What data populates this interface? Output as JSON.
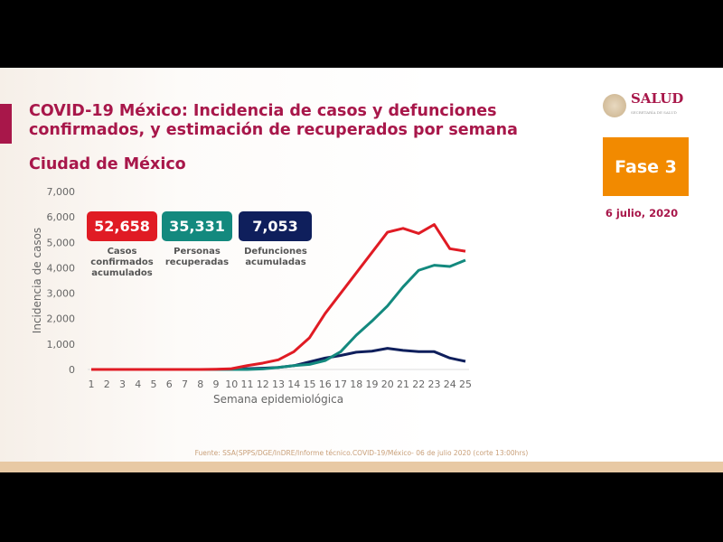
{
  "header": {
    "title_line1": "COVID-19 México: Incidencia de casos y defunciones",
    "title_line2": "confirmados, y estimación de recuperados por semana",
    "subtitle": "Ciudad de México",
    "logo_text": "SALUD",
    "logo_sub": "SECRETARÍA DE SALUD",
    "phase": "Fase 3",
    "date": "6 julio, 2020"
  },
  "kpis": [
    {
      "value": "52,658",
      "label": "Casos confirmados acumulados",
      "color": "#e01b24"
    },
    {
      "value": "35,331",
      "label": "Personas recuperadas",
      "color": "#13897e"
    },
    {
      "value": "7,053",
      "label": "Defunciones acumuladas",
      "color": "#0f1f5c"
    }
  ],
  "footer": {
    "source": "Fuente: SSA(SPPS/DGE/InDRE/Informe técnico.COVID-19/México- 06 de julio 2020 (corte 13:00hrs)"
  },
  "chart_data": {
    "type": "line",
    "xlabel": "Semana epidemiológica",
    "ylabel": "Incidencia de casos",
    "ylim": [
      0,
      7000
    ],
    "yticks": [
      "0",
      "1,000",
      "2,000",
      "3,000",
      "4,000",
      "5,000",
      "6,000",
      "7,000"
    ],
    "x": [
      1,
      2,
      3,
      4,
      5,
      6,
      7,
      8,
      9,
      10,
      11,
      12,
      13,
      14,
      15,
      16,
      17,
      18,
      19,
      20,
      21,
      22,
      23,
      24,
      25
    ],
    "series": [
      {
        "name": "Casos confirmados",
        "color": "#e01b24",
        "values": [
          0,
          0,
          0,
          0,
          0,
          0,
          0,
          0,
          10,
          30,
          150,
          250,
          380,
          700,
          1250,
          2200,
          3000,
          3800,
          4600,
          5400,
          5550,
          5350,
          5700,
          4750,
          4650
        ]
      },
      {
        "name": "Personas recuperadas",
        "color": "#13897e",
        "values": [
          0,
          0,
          0,
          0,
          0,
          0,
          0,
          0,
          0,
          0,
          0,
          20,
          80,
          150,
          200,
          350,
          700,
          1350,
          1900,
          2500,
          3250,
          3900,
          4100,
          4050,
          4300
        ]
      },
      {
        "name": "Defunciones",
        "color": "#0f1f5c",
        "values": [
          0,
          0,
          0,
          0,
          0,
          0,
          0,
          0,
          0,
          10,
          30,
          50,
          80,
          150,
          300,
          450,
          550,
          680,
          720,
          830,
          750,
          700,
          700,
          450,
          320
        ]
      }
    ]
  }
}
